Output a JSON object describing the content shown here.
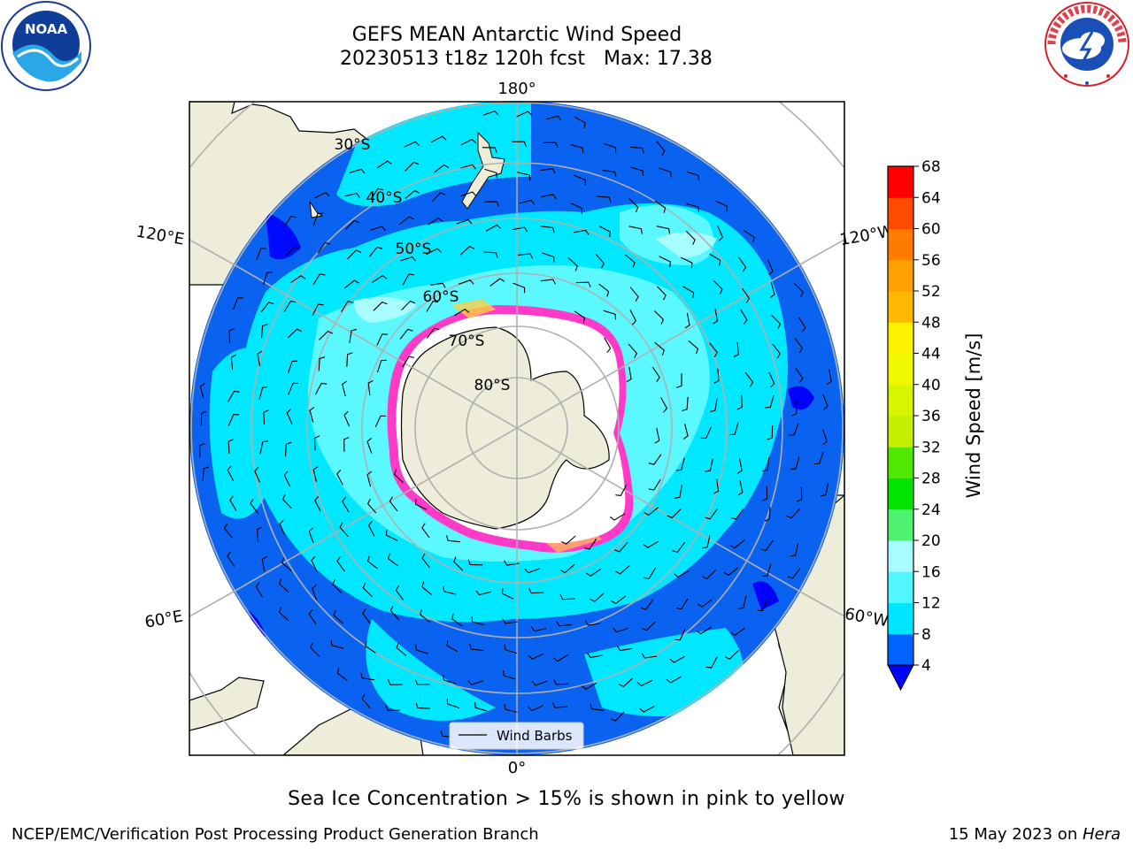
{
  "title": {
    "line1": "GEFS MEAN Antarctic Wind Speed",
    "line2": "20230513 t18z 120h fcst   Max: 17.38"
  },
  "map": {
    "projection": "south polar stereographic",
    "longitude_labels": [
      "180°",
      "0°",
      "120°E",
      "120°W",
      "60°E",
      "60°W"
    ],
    "latitude_labels": [
      "30°S",
      "40°S",
      "50°S",
      "60°S",
      "70°S",
      "80°S"
    ],
    "legend_label": "Wind Barbs",
    "colors": {
      "land": "#eeedd9",
      "ocean_4_8": "#0a62f0",
      "ocean_8_12": "#00ecff",
      "ocean_12_16": "#5cf8ff",
      "ocean_16_20": "#a8fdff",
      "sea_ice_edge": "#ff3ac8",
      "sea_ice_yellow": "#ffd040",
      "ice_interior": "#ffffff",
      "grid": "#b0b0b0"
    }
  },
  "colorbar": {
    "label": "Wind Speed [m/s]",
    "ticks": [
      "68",
      "64",
      "60",
      "56",
      "52",
      "48",
      "44",
      "40",
      "36",
      "32",
      "28",
      "24",
      "20",
      "16",
      "12",
      "8",
      "4"
    ],
    "bins": [
      {
        "from": 4,
        "to": 8,
        "color": "#0063ff"
      },
      {
        "from": 8,
        "to": 12,
        "color": "#00e5ff"
      },
      {
        "from": 12,
        "to": 16,
        "color": "#52f6ff"
      },
      {
        "from": 16,
        "to": 20,
        "color": "#a8fcff"
      },
      {
        "from": 20,
        "to": 24,
        "color": "#50f070"
      },
      {
        "from": 24,
        "to": 28,
        "color": "#00e400"
      },
      {
        "from": 28,
        "to": 32,
        "color": "#50e800"
      },
      {
        "from": 32,
        "to": 36,
        "color": "#c2f000"
      },
      {
        "from": 36,
        "to": 40,
        "color": "#d8f400"
      },
      {
        "from": 40,
        "to": 44,
        "color": "#f0f800"
      },
      {
        "from": 44,
        "to": 48,
        "color": "#fff200"
      },
      {
        "from": 48,
        "to": 52,
        "color": "#ffb800"
      },
      {
        "from": 52,
        "to": 56,
        "color": "#ffa000"
      },
      {
        "from": 56,
        "to": 60,
        "color": "#ff7c00"
      },
      {
        "from": 60,
        "to": 64,
        "color": "#ff4a00"
      },
      {
        "from": 64,
        "to": 68,
        "color": "#ff0000"
      }
    ],
    "extend_color": "#0000ff"
  },
  "caption": "Sea Ice Concentration > 15% is shown in pink to yellow",
  "footer": {
    "left": "NCEP/EMC/Verification Post Processing Product Generation Branch",
    "right_date": "15 May 2023 on ",
    "right_host": "Hera"
  },
  "logos": {
    "left": "NOAA",
    "right": "NATIONAL WEATHER SERVICE"
  }
}
